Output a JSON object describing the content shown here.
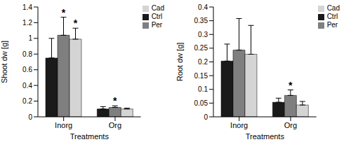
{
  "chart_data": [
    {
      "type": "bar",
      "x_label": "Treatments",
      "y_label": "Shoot dw [g]",
      "categories": [
        "Inorg",
        "Org"
      ],
      "ylim": [
        0,
        1.4
      ],
      "yticks": [
        0,
        0.2,
        0.4,
        0.6,
        0.8,
        1,
        1.2,
        1.4
      ],
      "legend": "top-right",
      "series": [
        {
          "name": "Ctrl",
          "color": "#1a1a1a",
          "values": [
            0.75,
            0.1
          ],
          "errors": [
            0.25,
            0.03
          ],
          "annotations": [
            null,
            null
          ]
        },
        {
          "name": "Per",
          "color": "#7f7f7f",
          "values": [
            1.04,
            0.12
          ],
          "errors": [
            0.23,
            0.02
          ],
          "annotations": [
            "*",
            "*"
          ]
        },
        {
          "name": "Cad",
          "color": "#d4d4d4",
          "values": [
            0.99,
            0.1
          ],
          "errors": [
            0.14,
            0.01
          ],
          "annotations": [
            "*",
            null
          ]
        }
      ]
    },
    {
      "type": "bar",
      "x_label": "Treatments",
      "y_label": "Root dw [g]",
      "categories": [
        "Inorg",
        "Org"
      ],
      "ylim": [
        0,
        0.4
      ],
      "yticks": [
        0,
        0.05,
        0.1,
        0.15,
        0.2,
        0.25,
        0.3,
        0.35,
        0.4
      ],
      "legend": "top-right",
      "series": [
        {
          "name": "Ctrl",
          "color": "#1a1a1a",
          "values": [
            0.203,
            0.053
          ],
          "errors": [
            0.062,
            0.015
          ],
          "annotations": [
            null,
            null
          ]
        },
        {
          "name": "Per",
          "color": "#7f7f7f",
          "values": [
            0.243,
            0.078
          ],
          "errors": [
            0.115,
            0.02
          ],
          "annotations": [
            null,
            "*"
          ]
        },
        {
          "name": "Cad",
          "color": "#d4d4d4",
          "values": [
            0.228,
            0.043
          ],
          "errors": [
            0.105,
            0.013
          ],
          "annotations": [
            null,
            null
          ]
        }
      ]
    }
  ]
}
